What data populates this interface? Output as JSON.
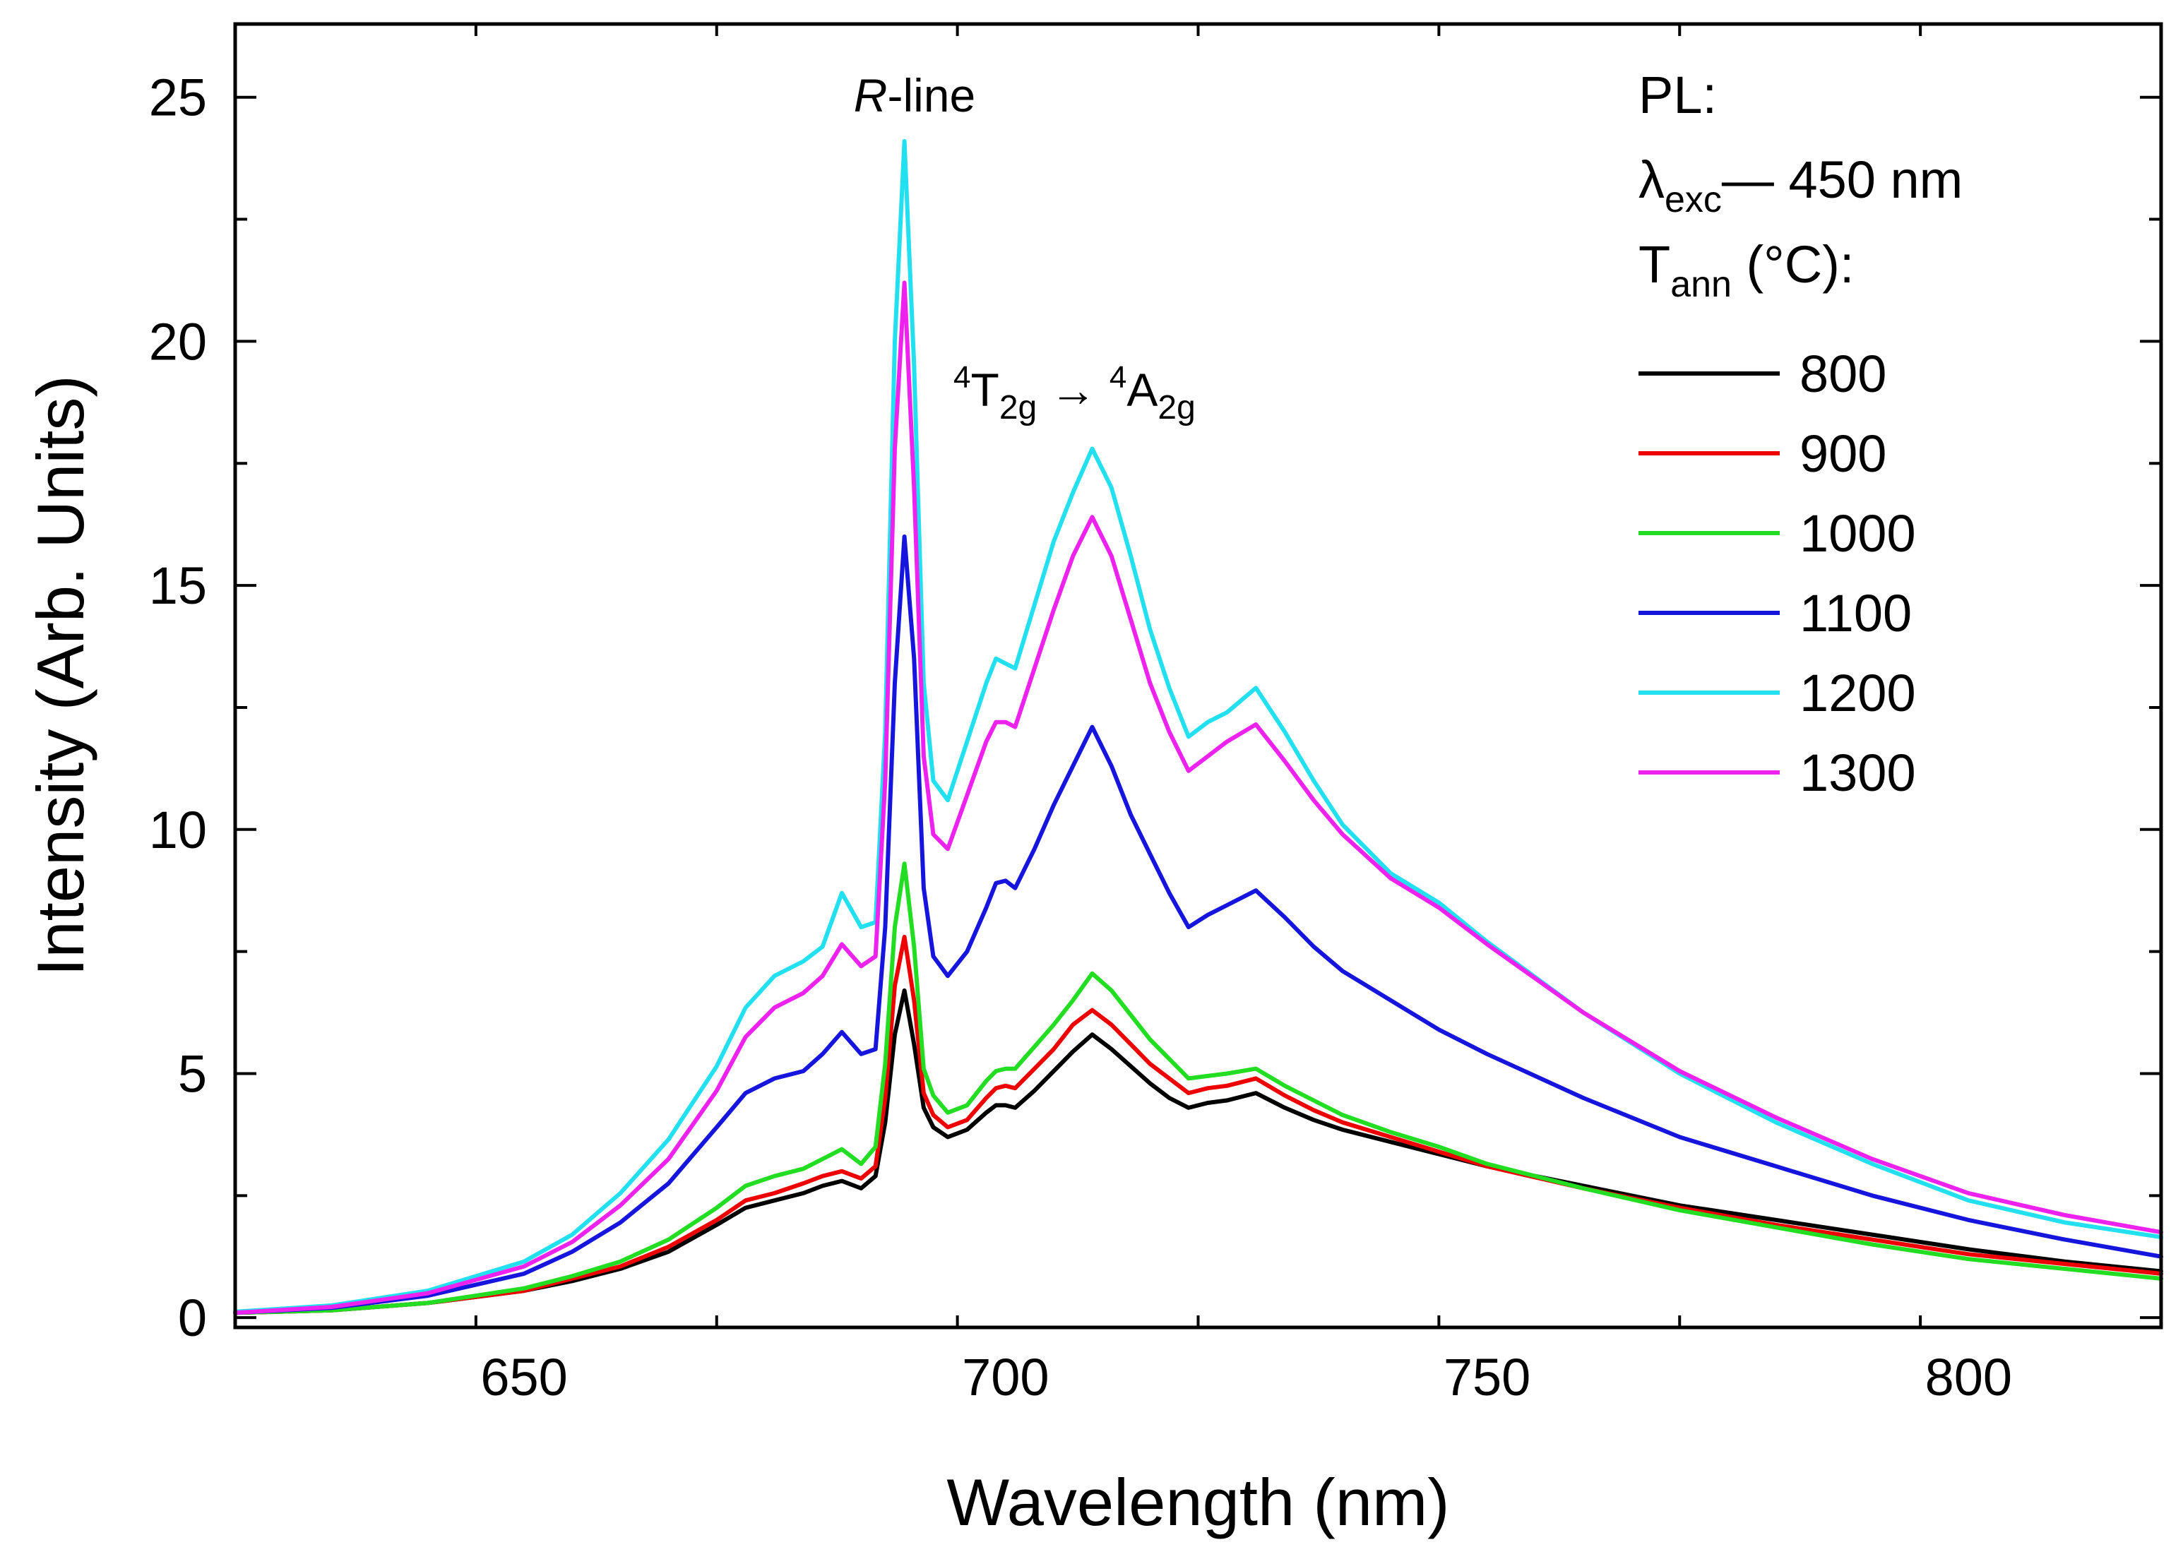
{
  "chart_data": {
    "type": "line",
    "xlabel": "Wavelength (nm)",
    "ylabel": "Intensity (Arb. Units)",
    "xlim": [
      620,
      820
    ],
    "ylim": [
      -0.2,
      26.5
    ],
    "x_ticks": [
      650,
      700,
      750,
      800
    ],
    "y_ticks": [
      0,
      5,
      10,
      15,
      20,
      25
    ],
    "x_tick_labels": [
      "650",
      "700",
      "750",
      "800"
    ],
    "y_tick_labels": [
      "0",
      "5",
      "10",
      "15",
      "20",
      "25"
    ],
    "grid": false,
    "legend_position": "top-right",
    "legend": {
      "line1": "PL:",
      "lambda_symbol": "λ",
      "lambda_sub": "exc",
      "lambda_value": "— 450 nm",
      "tann_symbol": "T",
      "tann_sub": "ann",
      "tann_unit": " (°C):"
    },
    "annotations": {
      "r_line_italic": "R",
      "r_line_rest": "-line",
      "transition": {
        "sup1": "4",
        "t": "T",
        "sub1": "2g",
        "arrow": " → ",
        "sup2": "4",
        "a": "A",
        "sub2": "2g"
      }
    },
    "x": [
      620,
      630,
      640,
      650,
      655,
      660,
      665,
      670,
      673,
      676,
      679,
      681,
      683,
      685,
      686.5,
      687.5,
      688.5,
      689.5,
      690.5,
      691.5,
      692.5,
      694,
      696,
      698,
      699,
      700,
      701,
      703,
      705,
      707,
      709,
      711,
      713,
      715,
      717,
      719,
      721,
      723,
      726,
      729,
      732,
      735,
      740,
      745,
      750,
      760,
      770,
      780,
      790,
      800,
      810,
      820
    ],
    "series": [
      {
        "name": "800",
        "color": "#000000",
        "values": [
          0.1,
          0.15,
          0.3,
          0.55,
          0.75,
          1.0,
          1.35,
          1.9,
          2.25,
          2.4,
          2.55,
          2.7,
          2.8,
          2.65,
          2.9,
          4.0,
          5.8,
          6.7,
          5.6,
          4.3,
          3.9,
          3.7,
          3.85,
          4.2,
          4.35,
          4.35,
          4.3,
          4.65,
          5.05,
          5.45,
          5.8,
          5.5,
          5.15,
          4.8,
          4.5,
          4.3,
          4.4,
          4.45,
          4.6,
          4.3,
          4.05,
          3.85,
          3.6,
          3.35,
          3.1,
          2.7,
          2.3,
          2.0,
          1.7,
          1.4,
          1.15,
          0.95
        ]
      },
      {
        "name": "900",
        "color": "#ee0000",
        "values": [
          0.1,
          0.15,
          0.3,
          0.55,
          0.8,
          1.05,
          1.45,
          2.0,
          2.4,
          2.55,
          2.75,
          2.9,
          3.0,
          2.85,
          3.1,
          4.5,
          6.8,
          7.8,
          6.5,
          4.6,
          4.15,
          3.9,
          4.05,
          4.5,
          4.7,
          4.75,
          4.7,
          5.1,
          5.5,
          6.0,
          6.3,
          6.0,
          5.6,
          5.2,
          4.9,
          4.6,
          4.7,
          4.75,
          4.9,
          4.55,
          4.25,
          4.0,
          3.7,
          3.4,
          3.1,
          2.65,
          2.25,
          1.9,
          1.6,
          1.3,
          1.1,
          0.9
        ]
      },
      {
        "name": "1000",
        "color": "#22dd22",
        "values": [
          0.1,
          0.15,
          0.3,
          0.6,
          0.85,
          1.15,
          1.6,
          2.25,
          2.7,
          2.9,
          3.05,
          3.25,
          3.45,
          3.15,
          3.5,
          5.2,
          8.0,
          9.3,
          7.6,
          5.1,
          4.55,
          4.2,
          4.35,
          4.85,
          5.05,
          5.1,
          5.1,
          5.55,
          6.0,
          6.5,
          7.05,
          6.7,
          6.2,
          5.7,
          5.3,
          4.9,
          4.95,
          5.0,
          5.1,
          4.75,
          4.45,
          4.15,
          3.8,
          3.5,
          3.15,
          2.65,
          2.2,
          1.85,
          1.5,
          1.2,
          1.0,
          0.8
        ]
      },
      {
        "name": "1100",
        "color": "#1515dd",
        "values": [
          0.1,
          0.2,
          0.45,
          0.9,
          1.35,
          1.95,
          2.75,
          3.9,
          4.6,
          4.9,
          5.05,
          5.4,
          5.85,
          5.4,
          5.5,
          8.0,
          13.0,
          16.0,
          13.5,
          8.8,
          7.4,
          7.0,
          7.5,
          8.4,
          8.9,
          8.95,
          8.8,
          9.6,
          10.5,
          11.3,
          12.1,
          11.3,
          10.3,
          9.5,
          8.7,
          8.0,
          8.25,
          8.45,
          8.75,
          8.2,
          7.6,
          7.1,
          6.5,
          5.9,
          5.4,
          4.5,
          3.7,
          3.1,
          2.5,
          2.0,
          1.6,
          1.25
        ]
      },
      {
        "name": "1200",
        "color": "#22e0f0",
        "values": [
          0.12,
          0.25,
          0.55,
          1.15,
          1.7,
          2.55,
          3.65,
          5.15,
          6.35,
          7.0,
          7.3,
          7.6,
          8.7,
          8.0,
          8.1,
          12.0,
          20.0,
          24.1,
          19.5,
          13.0,
          11.0,
          10.6,
          11.8,
          13.0,
          13.5,
          13.4,
          13.3,
          14.6,
          15.9,
          16.9,
          17.8,
          17.0,
          15.6,
          14.1,
          12.9,
          11.9,
          12.2,
          12.4,
          12.9,
          12.0,
          11.0,
          10.1,
          9.1,
          8.5,
          7.7,
          6.25,
          5.0,
          4.0,
          3.15,
          2.4,
          1.95,
          1.65
        ]
      },
      {
        "name": "1300",
        "color": "#ee22ee",
        "values": [
          0.1,
          0.22,
          0.5,
          1.05,
          1.55,
          2.3,
          3.25,
          4.65,
          5.75,
          6.35,
          6.65,
          7.0,
          7.65,
          7.2,
          7.4,
          11.0,
          17.8,
          21.2,
          17.0,
          11.5,
          9.9,
          9.6,
          10.7,
          11.8,
          12.2,
          12.2,
          12.1,
          13.3,
          14.5,
          15.6,
          16.4,
          15.6,
          14.3,
          13.0,
          12.0,
          11.2,
          11.5,
          11.8,
          12.15,
          11.4,
          10.6,
          9.9,
          9.0,
          8.4,
          7.65,
          6.25,
          5.05,
          4.1,
          3.25,
          2.55,
          2.1,
          1.75
        ]
      }
    ]
  }
}
